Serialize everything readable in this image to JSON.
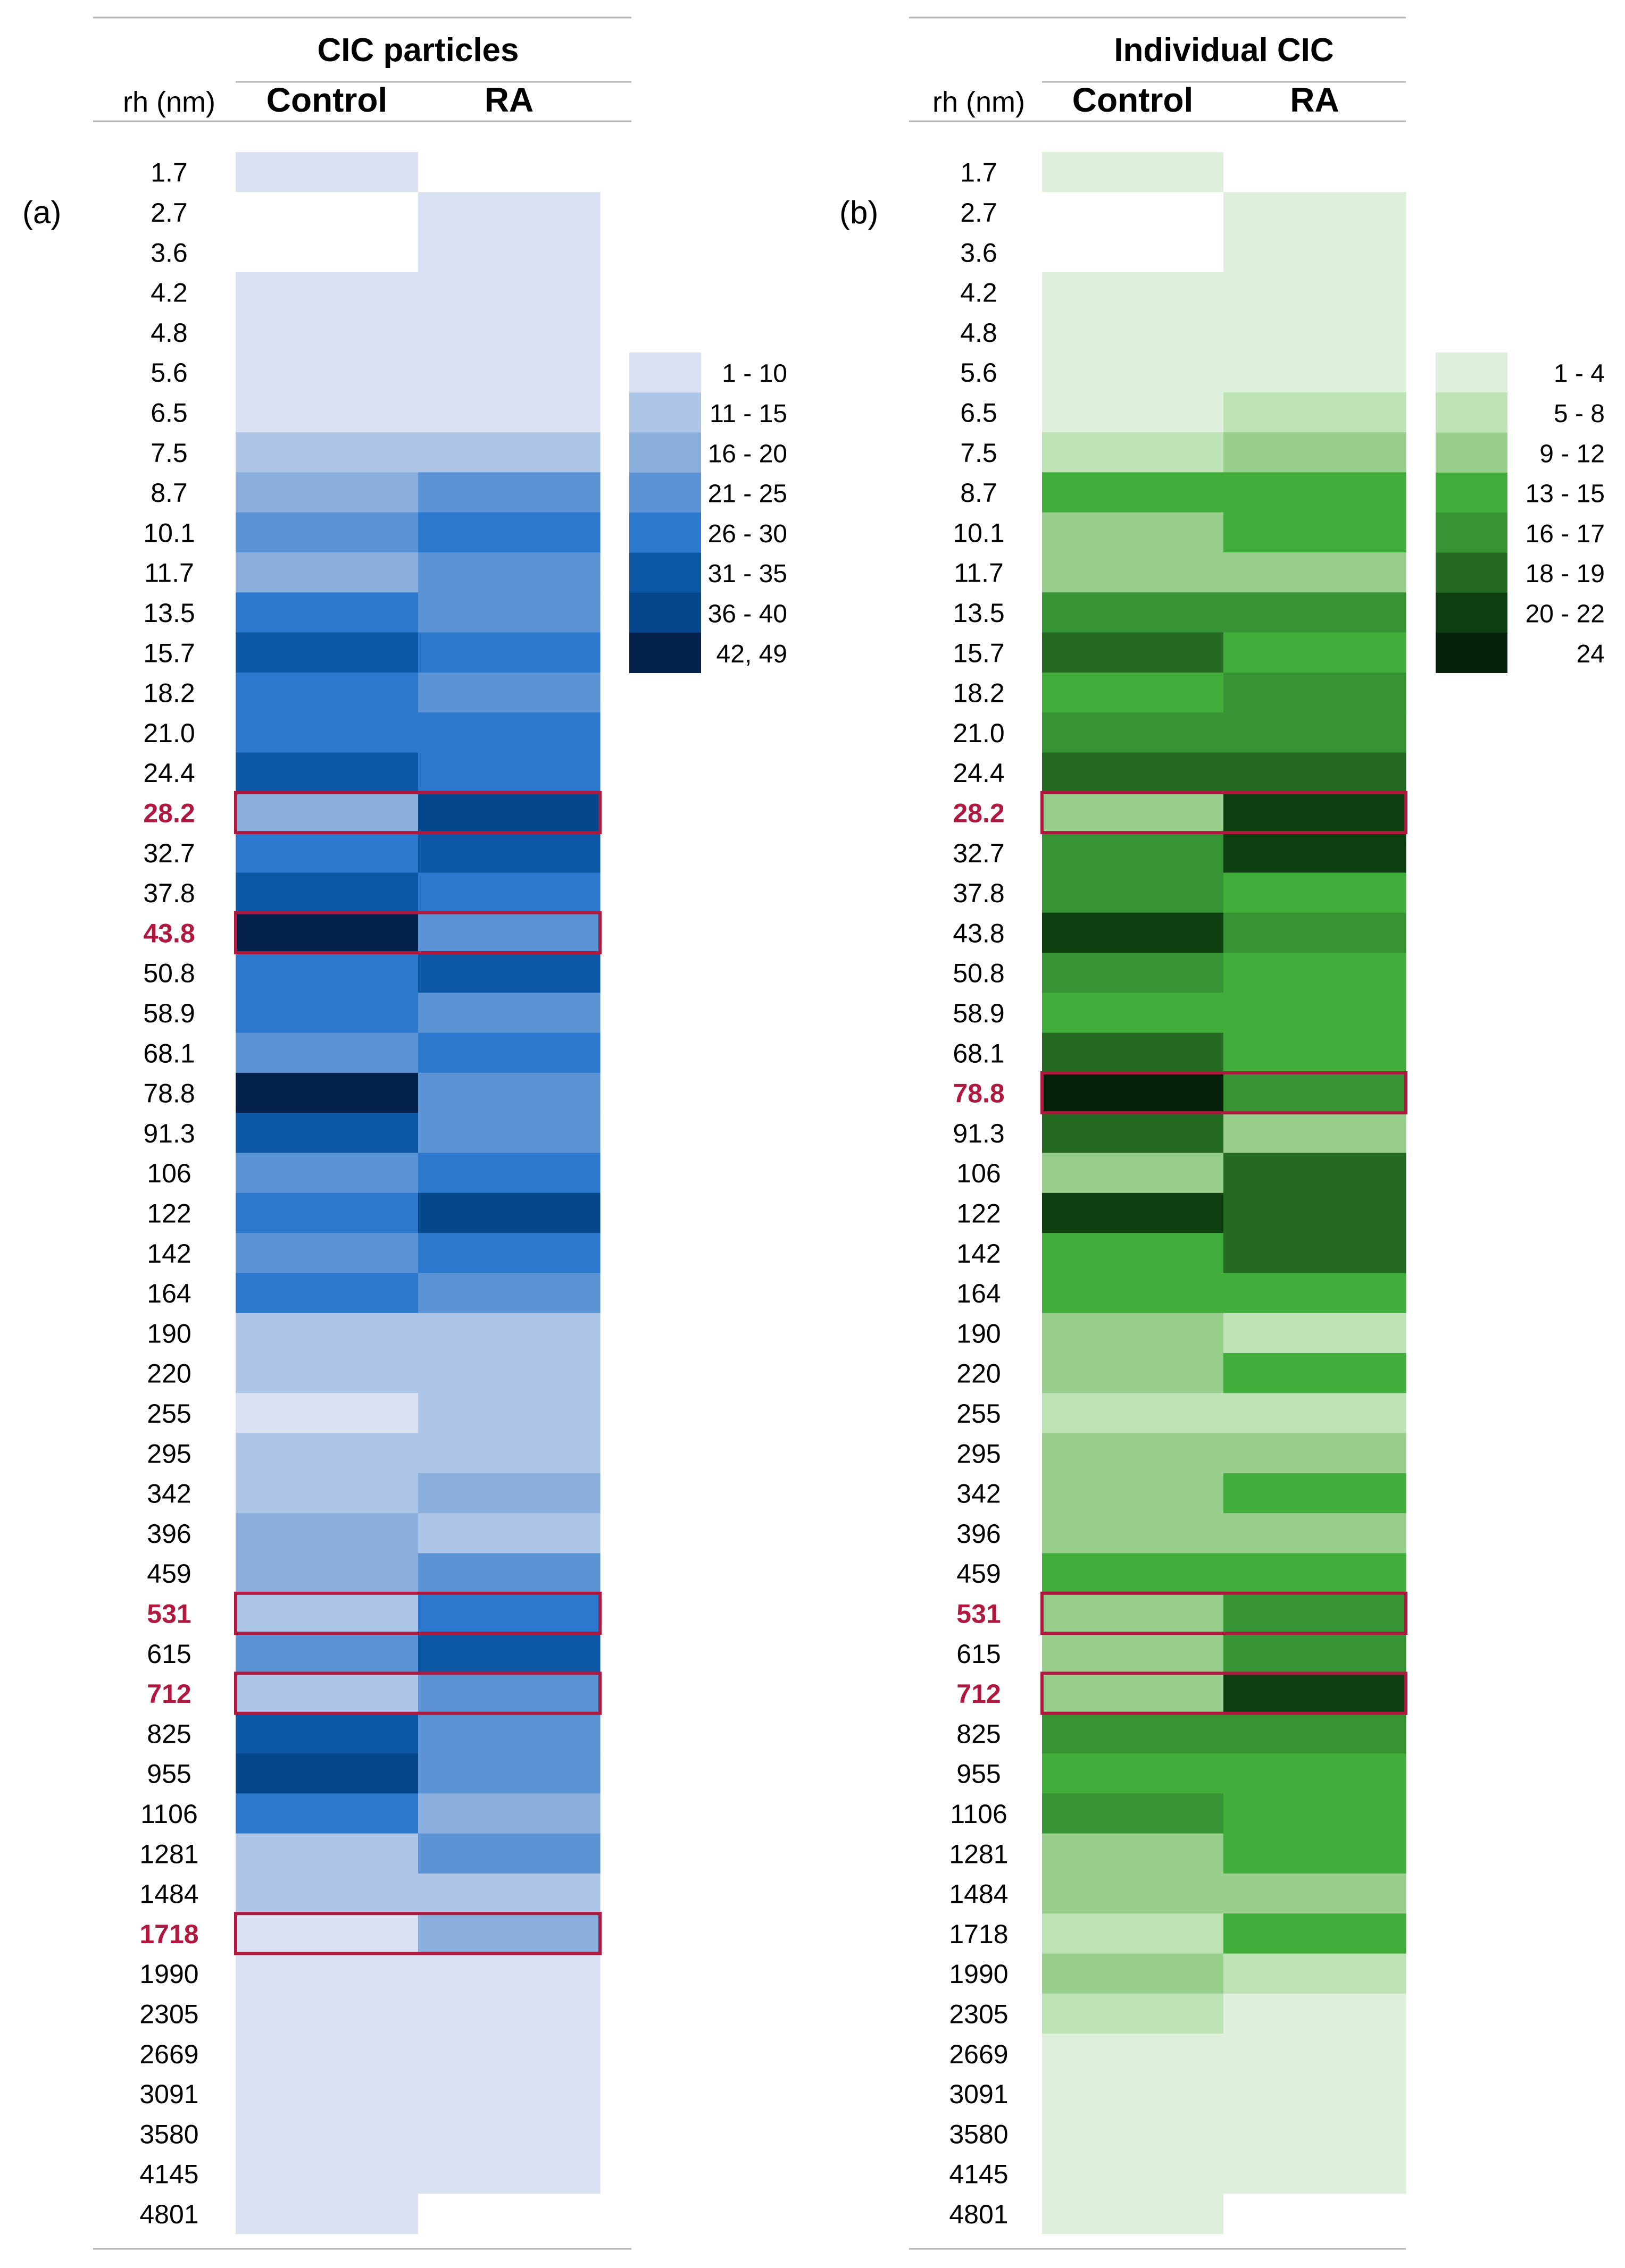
{
  "chart_data": [
    {
      "type": "heatmap",
      "panel": "(a)",
      "title": "CIC particles",
      "row_header": "rh (nm)",
      "columns": [
        "Control",
        "RA"
      ],
      "rows": [
        "1.7",
        "2.7",
        "3.6",
        "4.2",
        "4.8",
        "5.6",
        "6.5",
        "7.5",
        "8.7",
        "10.1",
        "11.7",
        "13.5",
        "15.7",
        "18.2",
        "21.0",
        "24.4",
        "28.2",
        "32.7",
        "37.8",
        "43.8",
        "50.8",
        "58.9",
        "68.1",
        "78.8",
        "91.3",
        "106",
        "122",
        "142",
        "164",
        "190",
        "220",
        "255",
        "295",
        "342",
        "396",
        "459",
        "531",
        "615",
        "712",
        "825",
        "955",
        "1106",
        "1281",
        "1484",
        "1718",
        "1990",
        "2305",
        "2669",
        "3091",
        "3580",
        "4145",
        "4801"
      ],
      "highlighted_rows": [
        "28.2",
        "43.8",
        "531",
        "712",
        "1718"
      ],
      "legend": [
        "1 - 10",
        "11 - 15",
        "16 - 20",
        "21 - 25",
        "26 - 30",
        "31 - 35",
        "36 - 40",
        "42, 49"
      ],
      "colors": [
        "#d9e1f2",
        "#adc6e8",
        "#8aafdc",
        "#5c93d4",
        "#2b78cc",
        "#0b57a4",
        "#04478a",
        "#03214a"
      ],
      "empty_color": "#ffffff",
      "highlight_color": "#b0193f",
      "cells": [
        [
          0,
          -1
        ],
        [
          -1,
          0
        ],
        [
          -1,
          0
        ],
        [
          0,
          0
        ],
        [
          0,
          0
        ],
        [
          0,
          0
        ],
        [
          0,
          0
        ],
        [
          1,
          1
        ],
        [
          2,
          3
        ],
        [
          3,
          4
        ],
        [
          2,
          3
        ],
        [
          4,
          3
        ],
        [
          5,
          4
        ],
        [
          4,
          3
        ],
        [
          4,
          4
        ],
        [
          5,
          4
        ],
        [
          2,
          6
        ],
        [
          4,
          5
        ],
        [
          5,
          4
        ],
        [
          7,
          3
        ],
        [
          4,
          5
        ],
        [
          4,
          3
        ],
        [
          3,
          4
        ],
        [
          7,
          3
        ],
        [
          5,
          3
        ],
        [
          3,
          4
        ],
        [
          4,
          6
        ],
        [
          3,
          4
        ],
        [
          4,
          3
        ],
        [
          1,
          1
        ],
        [
          1,
          1
        ],
        [
          0,
          1
        ],
        [
          1,
          1
        ],
        [
          1,
          2
        ],
        [
          2,
          1
        ],
        [
          2,
          3
        ],
        [
          1,
          4
        ],
        [
          3,
          5
        ],
        [
          1,
          3
        ],
        [
          5,
          3
        ],
        [
          6,
          3
        ],
        [
          4,
          2
        ],
        [
          1,
          3
        ],
        [
          1,
          1
        ],
        [
          0,
          2
        ],
        [
          0,
          0
        ],
        [
          0,
          0
        ],
        [
          0,
          0
        ],
        [
          0,
          0
        ],
        [
          0,
          0
        ],
        [
          0,
          0
        ],
        [
          0,
          -1
        ]
      ]
    },
    {
      "type": "heatmap",
      "panel": "(b)",
      "title": "Individual CIC",
      "row_header": "rh (nm)",
      "columns": [
        "Control",
        "RA"
      ],
      "rows": [
        "1.7",
        "2.7",
        "3.6",
        "4.2",
        "4.8",
        "5.6",
        "6.5",
        "7.5",
        "8.7",
        "10.1",
        "11.7",
        "13.5",
        "15.7",
        "18.2",
        "21.0",
        "24.4",
        "28.2",
        "32.7",
        "37.8",
        "43.8",
        "50.8",
        "58.9",
        "68.1",
        "78.8",
        "91.3",
        "106",
        "122",
        "142",
        "164",
        "190",
        "220",
        "255",
        "295",
        "342",
        "396",
        "459",
        "531",
        "615",
        "712",
        "825",
        "955",
        "1106",
        "1281",
        "1484",
        "1718",
        "1990",
        "2305",
        "2669",
        "3091",
        "3580",
        "4145",
        "4801"
      ],
      "highlighted_rows": [
        "28.2",
        "78.8",
        "531",
        "712"
      ],
      "legend": [
        "1 - 4",
        "5 - 8",
        "9 - 12",
        "13 - 15",
        "16 - 17",
        "18 - 19",
        "20 - 22",
        "24"
      ],
      "colors": [
        "#deefdb",
        "#bde3b5",
        "#98cf8c",
        "#41ae3c",
        "#379434",
        "#256a23",
        "#0c3e10",
        "#06210a"
      ],
      "empty_color": "#ffffff",
      "highlight_color": "#b0193f",
      "cells": [
        [
          0,
          -1
        ],
        [
          -1,
          0
        ],
        [
          -1,
          0
        ],
        [
          0,
          0
        ],
        [
          0,
          0
        ],
        [
          0,
          0
        ],
        [
          0,
          1
        ],
        [
          1,
          2
        ],
        [
          3,
          3
        ],
        [
          2,
          3
        ],
        [
          2,
          2
        ],
        [
          4,
          4
        ],
        [
          5,
          3
        ],
        [
          3,
          4
        ],
        [
          4,
          4
        ],
        [
          5,
          5
        ],
        [
          2,
          6
        ],
        [
          4,
          6
        ],
        [
          4,
          3
        ],
        [
          6,
          4
        ],
        [
          4,
          3
        ],
        [
          3,
          3
        ],
        [
          5,
          3
        ],
        [
          7,
          4
        ],
        [
          5,
          2
        ],
        [
          2,
          5
        ],
        [
          6,
          5
        ],
        [
          3,
          5
        ],
        [
          3,
          3
        ],
        [
          2,
          1
        ],
        [
          2,
          3
        ],
        [
          1,
          1
        ],
        [
          2,
          2
        ],
        [
          2,
          3
        ],
        [
          2,
          2
        ],
        [
          3,
          3
        ],
        [
          2,
          4
        ],
        [
          2,
          4
        ],
        [
          2,
          6
        ],
        [
          4,
          4
        ],
        [
          3,
          3
        ],
        [
          4,
          3
        ],
        [
          2,
          3
        ],
        [
          2,
          2
        ],
        [
          1,
          3
        ],
        [
          2,
          1
        ],
        [
          1,
          0
        ],
        [
          0,
          0
        ],
        [
          0,
          0
        ],
        [
          0,
          0
        ],
        [
          0,
          0
        ],
        [
          0,
          -1
        ]
      ]
    }
  ]
}
